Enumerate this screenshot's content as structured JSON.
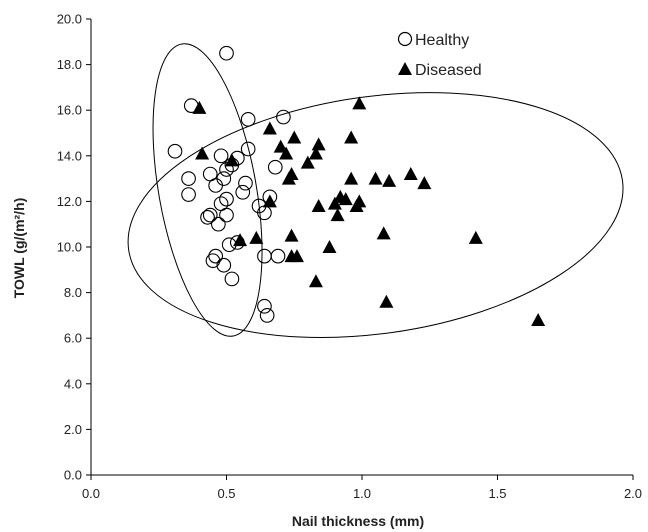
{
  "chart_data": {
    "type": "scatter",
    "title": "",
    "xlabel": "Nail thickness (mm)",
    "ylabel": "TOWL (g/(m²/h)",
    "xlim": [
      0.0,
      2.0
    ],
    "ylim": [
      0.0,
      20.0
    ],
    "x_ticks": [
      "0.0",
      "0.5",
      "1.0",
      "1.5",
      "2.0"
    ],
    "y_ticks": [
      "0.0",
      "2.0",
      "4.0",
      "6.0",
      "8.0",
      "10.0",
      "12.0",
      "14.0",
      "16.0",
      "18.0",
      "20.0"
    ],
    "grid": false,
    "legend_position": "top-right",
    "series": [
      {
        "name": "Healthy",
        "marker": "open-circle",
        "color": "#000000",
        "points": [
          [
            0.5,
            18.5
          ],
          [
            0.37,
            16.2
          ],
          [
            0.58,
            15.6
          ],
          [
            0.71,
            15.7
          ],
          [
            0.31,
            14.2
          ],
          [
            0.48,
            14.0
          ],
          [
            0.54,
            13.9
          ],
          [
            0.58,
            14.3
          ],
          [
            0.52,
            13.6
          ],
          [
            0.5,
            13.4
          ],
          [
            0.44,
            13.2
          ],
          [
            0.49,
            13.0
          ],
          [
            0.36,
            13.0
          ],
          [
            0.46,
            12.7
          ],
          [
            0.57,
            12.8
          ],
          [
            0.68,
            13.5
          ],
          [
            0.36,
            12.3
          ],
          [
            0.56,
            12.4
          ],
          [
            0.66,
            12.2
          ],
          [
            0.5,
            12.1
          ],
          [
            0.48,
            11.9
          ],
          [
            0.62,
            11.8
          ],
          [
            0.64,
            11.5
          ],
          [
            0.44,
            11.4
          ],
          [
            0.43,
            11.3
          ],
          [
            0.5,
            11.4
          ],
          [
            0.47,
            11.0
          ],
          [
            0.51,
            10.1
          ],
          [
            0.46,
            9.6
          ],
          [
            0.45,
            9.4
          ],
          [
            0.49,
            9.2
          ],
          [
            0.54,
            10.2
          ],
          [
            0.64,
            9.6
          ],
          [
            0.69,
            9.6
          ],
          [
            0.52,
            8.6
          ],
          [
            0.64,
            7.4
          ],
          [
            0.65,
            7.0
          ]
        ]
      },
      {
        "name": "Diseased",
        "marker": "filled-triangle",
        "color": "#000000",
        "points": [
          [
            0.4,
            16.1
          ],
          [
            0.99,
            16.3
          ],
          [
            0.66,
            15.2
          ],
          [
            0.75,
            14.8
          ],
          [
            0.96,
            14.8
          ],
          [
            0.41,
            14.1
          ],
          [
            0.52,
            13.8
          ],
          [
            0.7,
            14.4
          ],
          [
            0.72,
            14.1
          ],
          [
            0.84,
            14.5
          ],
          [
            0.83,
            14.1
          ],
          [
            0.8,
            13.7
          ],
          [
            0.74,
            13.2
          ],
          [
            0.73,
            13.0
          ],
          [
            0.96,
            13.0
          ],
          [
            1.05,
            13.0
          ],
          [
            1.1,
            12.9
          ],
          [
            1.18,
            13.2
          ],
          [
            1.23,
            12.8
          ],
          [
            0.66,
            12.0
          ],
          [
            0.84,
            11.8
          ],
          [
            0.9,
            11.9
          ],
          [
            0.92,
            12.2
          ],
          [
            0.94,
            12.1
          ],
          [
            0.91,
            11.4
          ],
          [
            0.98,
            11.8
          ],
          [
            0.99,
            12.0
          ],
          [
            0.61,
            10.4
          ],
          [
            0.74,
            10.5
          ],
          [
            0.88,
            10.0
          ],
          [
            1.08,
            10.6
          ],
          [
            1.42,
            10.4
          ],
          [
            0.55,
            10.3
          ],
          [
            0.74,
            9.6
          ],
          [
            0.76,
            9.6
          ],
          [
            0.83,
            8.5
          ],
          [
            1.09,
            7.6
          ],
          [
            1.65,
            6.8
          ]
        ]
      }
    ],
    "ellipses": [
      {
        "cx": 0.43,
        "cy": 12.5,
        "rx": 0.18,
        "ry": 6.5,
        "rotation_deg": -10
      },
      {
        "cx": 1.05,
        "cy": 11.4,
        "rx": 0.92,
        "ry": 5.2,
        "rotation_deg": -8
      }
    ]
  }
}
